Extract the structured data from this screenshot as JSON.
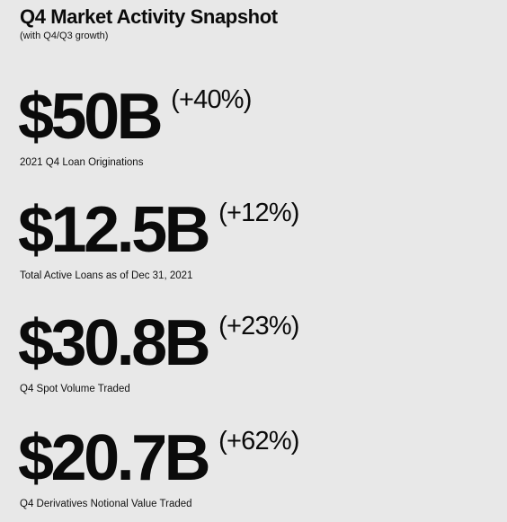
{
  "header": {
    "title": "Q4 Market Activity Snapshot",
    "subtitle": "(with Q4/Q3 growth)"
  },
  "stats": [
    {
      "value": "$50B",
      "growth": "(+40%)",
      "label": "2021 Q4 Loan Originations"
    },
    {
      "value": "$12.5B",
      "growth": "(+12%)",
      "label": "Total Active Loans as of Dec 31, 2021"
    },
    {
      "value": "$30.8B",
      "growth": "(+23%)",
      "label": "Q4 Spot Volume Traded"
    },
    {
      "value": "$20.7B",
      "growth": "(+62%)",
      "label": "Q4 Derivatives Notional Value Traded"
    }
  ]
}
